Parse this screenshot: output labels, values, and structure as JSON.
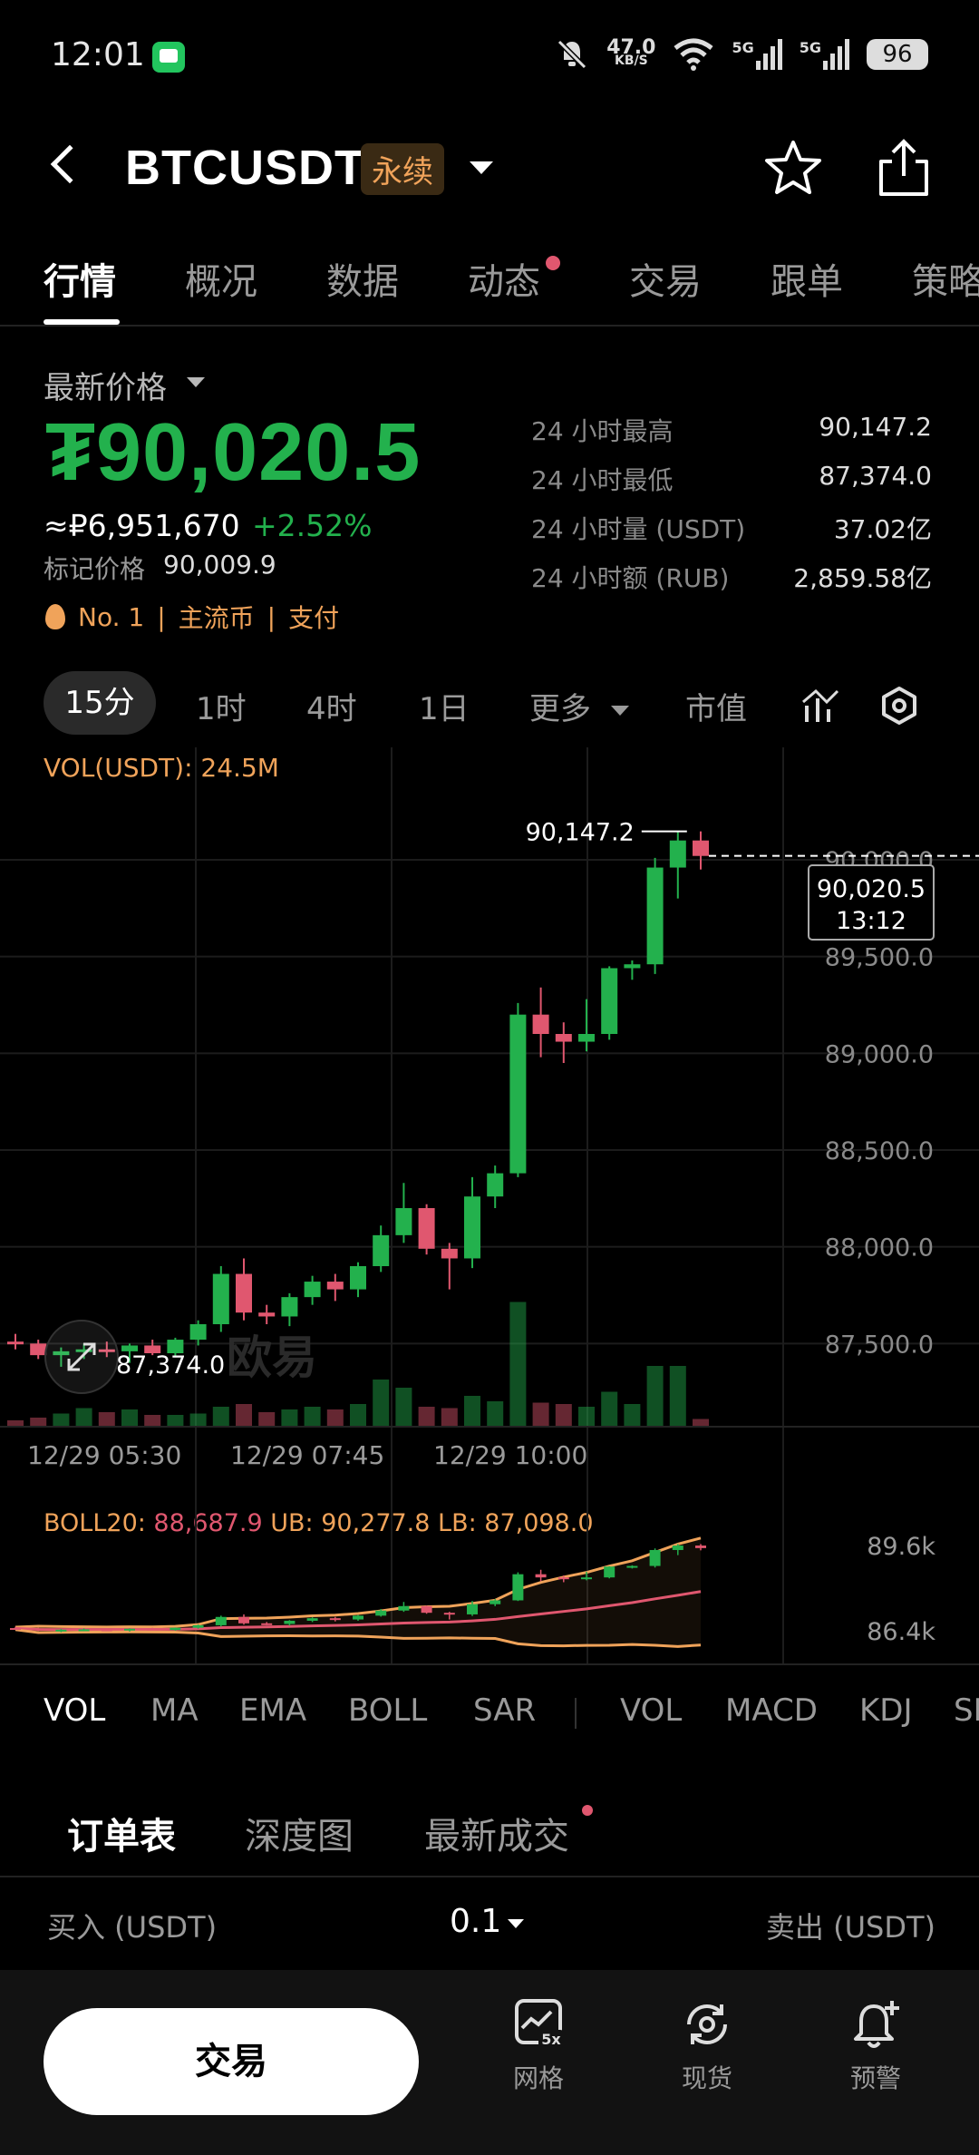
{
  "status_bar": {
    "time": "12:01",
    "net_speed_value": "47.0",
    "net_speed_unit": "KB/S",
    "sim1": "5G",
    "sim2": "5G",
    "battery": "96"
  },
  "header": {
    "symbol": "BTCUSDT",
    "badge": "永续"
  },
  "tabs": [
    {
      "label": "行情"
    },
    {
      "label": "概况"
    },
    {
      "label": "数据"
    },
    {
      "label": "动态"
    },
    {
      "label": "交易"
    },
    {
      "label": "跟单"
    },
    {
      "label": "策略"
    }
  ],
  "price": {
    "latest_label": "最新价格",
    "last_price": "₮90,020.5",
    "rub_price": "≈₽6,951,670",
    "change": "+2.52%",
    "mark_label": "标记价格",
    "mark_value": "90,009.9",
    "tags": [
      "No. 1",
      "|",
      "主流币",
      "|",
      "支付"
    ]
  },
  "stats": [
    {
      "label": "24 小时最高",
      "value": "90,147.2"
    },
    {
      "label": "24 小时最低",
      "value": "87,374.0"
    },
    {
      "label": "24 小时量 (USDT)",
      "value": "37.02亿"
    },
    {
      "label": "24 小时额 (RUB)",
      "value": "2,859.58亿"
    }
  ],
  "intervals": {
    "i15": "15分",
    "i1h": "1时",
    "i4h": "4时",
    "i1d": "1日",
    "more": "更多",
    "market_cap": "市值"
  },
  "chart_data": {
    "type": "candlestick",
    "vol_label": "VOL(USDT): 24.5M",
    "y_ticks": [
      "90,000.0",
      "89,500.0",
      "89,000.0",
      "88,500.0",
      "88,000.0",
      "87,500.0"
    ],
    "y_tick_values": [
      90000,
      89500,
      89000,
      88500,
      88000,
      87500
    ],
    "ylim": [
      87300,
      90300
    ],
    "x_ticks": [
      "12/29 05:30",
      "12/29 07:45",
      "12/29 10:00"
    ],
    "high_label": "90,147.2",
    "low_label": "87,374.0",
    "last_price_box": "90,020.5",
    "countdown": "13:12",
    "watermark": "欧易",
    "candles": [
      {
        "o": 87510,
        "h": 87550,
        "l": 87470,
        "c": 87500,
        "v": 0.4
      },
      {
        "o": 87500,
        "h": 87520,
        "l": 87420,
        "c": 87440,
        "v": 0.6
      },
      {
        "o": 87440,
        "h": 87480,
        "l": 87380,
        "c": 87460,
        "v": 0.9
      },
      {
        "o": 87460,
        "h": 87500,
        "l": 87420,
        "c": 87470,
        "v": 1.3
      },
      {
        "o": 87470,
        "h": 87510,
        "l": 87430,
        "c": 87460,
        "v": 1.0
      },
      {
        "o": 87460,
        "h": 87500,
        "l": 87400,
        "c": 87490,
        "v": 1.2
      },
      {
        "o": 87490,
        "h": 87520,
        "l": 87440,
        "c": 87450,
        "v": 0.8
      },
      {
        "o": 87450,
        "h": 87530,
        "l": 87430,
        "c": 87520,
        "v": 0.8
      },
      {
        "o": 87520,
        "h": 87620,
        "l": 87490,
        "c": 87600,
        "v": 0.9
      },
      {
        "o": 87600,
        "h": 87900,
        "l": 87560,
        "c": 87860,
        "v": 1.4
      },
      {
        "o": 87860,
        "h": 87940,
        "l": 87620,
        "c": 87660,
        "v": 1.6
      },
      {
        "o": 87660,
        "h": 87700,
        "l": 87600,
        "c": 87640,
        "v": 1.0
      },
      {
        "o": 87640,
        "h": 87760,
        "l": 87590,
        "c": 87740,
        "v": 1.2
      },
      {
        "o": 87740,
        "h": 87850,
        "l": 87700,
        "c": 87820,
        "v": 1.4
      },
      {
        "o": 87820,
        "h": 87860,
        "l": 87720,
        "c": 87780,
        "v": 1.2
      },
      {
        "o": 87780,
        "h": 87920,
        "l": 87740,
        "c": 87900,
        "v": 1.6
      },
      {
        "o": 87900,
        "h": 88110,
        "l": 87870,
        "c": 88060,
        "v": 3.4
      },
      {
        "o": 88060,
        "h": 88330,
        "l": 88020,
        "c": 88200,
        "v": 2.8
      },
      {
        "o": 88200,
        "h": 88220,
        "l": 87960,
        "c": 87990,
        "v": 1.4
      },
      {
        "o": 87990,
        "h": 88020,
        "l": 87780,
        "c": 87940,
        "v": 1.3
      },
      {
        "o": 87940,
        "h": 88360,
        "l": 87890,
        "c": 88260,
        "v": 2.2
      },
      {
        "o": 88260,
        "h": 88420,
        "l": 88200,
        "c": 88380,
        "v": 1.8
      },
      {
        "o": 88380,
        "h": 89260,
        "l": 88360,
        "c": 89200,
        "v": 9.1
      },
      {
        "o": 89200,
        "h": 89340,
        "l": 88980,
        "c": 89100,
        "v": 1.7
      },
      {
        "o": 89100,
        "h": 89160,
        "l": 88950,
        "c": 89060,
        "v": 1.6
      },
      {
        "o": 89060,
        "h": 89280,
        "l": 89010,
        "c": 89100,
        "v": 1.4
      },
      {
        "o": 89100,
        "h": 89450,
        "l": 89070,
        "c": 89440,
        "v": 2.5
      },
      {
        "o": 89440,
        "h": 89480,
        "l": 89380,
        "c": 89460,
        "v": 1.6
      },
      {
        "o": 89460,
        "h": 90010,
        "l": 89410,
        "c": 89960,
        "v": 4.4
      },
      {
        "o": 89960,
        "h": 90147,
        "l": 89800,
        "c": 90100,
        "v": 4.4
      },
      {
        "o": 90100,
        "h": 90147,
        "l": 89950,
        "c": 90020,
        "v": 0.5
      }
    ]
  },
  "time_axis": [
    "12/29 05:30",
    "12/29 07:45",
    "12/29 10:00"
  ],
  "boll": {
    "label_prefix": "BOLL20: ",
    "mid": "88,687.9",
    "ub_text": " UB: 90,277.8",
    "lb_text": " LB: 87,098.0",
    "axis_hi": "89.6k",
    "axis_lo": "86.4k"
  },
  "indicator_tabs": {
    "main": [
      "VOL",
      "MA",
      "EMA",
      "BOLL",
      "SAR"
    ],
    "sub": [
      "VOL",
      "MACD",
      "KDJ",
      "SRSI"
    ]
  },
  "order_book": {
    "tabs": [
      "订单表",
      "深度图",
      "最新成交"
    ],
    "buy_label": "买入 (USDT)",
    "precision": "0.1",
    "sell_label": "卖出 (USDT)"
  },
  "bottom": {
    "trade": "交易",
    "grid": "网格",
    "grid_badge": "5x",
    "spot": "现货",
    "alert": "预警"
  },
  "colors": {
    "up": "#23b14d",
    "down": "#e0576f",
    "accent": "#f0a35a"
  }
}
